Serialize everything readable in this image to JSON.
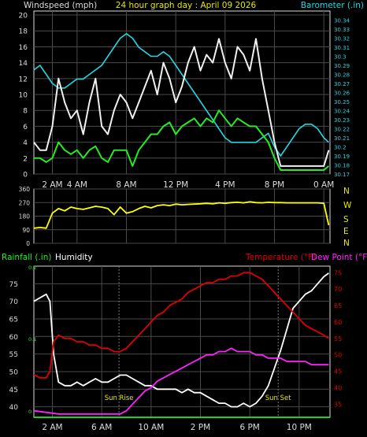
{
  "header": {
    "left_label": "Windspeed (mph)",
    "center_label": "24 hour graph day : April 09 2026",
    "right_label": "Barometer (.in)"
  },
  "colors": {
    "background": "#000000",
    "frame": "#dcdcdc",
    "grid": "#4a4a4a",
    "label": "#dcdcdc",
    "title": "#e8e800",
    "cyan": "#22d6e0",
    "green": "#22ee22",
    "gust": "#f0f0f0",
    "yellow": "#ffff00",
    "red": "#e00000",
    "magenta": "#ff22ff",
    "humidity": "#ffffff"
  },
  "chart_data": [
    {
      "id": "wind",
      "type": "line",
      "x_unit": "hours since midnight",
      "xlim": [
        0,
        24
      ],
      "x_tick_labels": [
        {
          "x": 1.5,
          "label": "2 AM"
        },
        {
          "x": 3.5,
          "label": "4 AM"
        },
        {
          "x": 7.5,
          "label": "8 AM"
        },
        {
          "x": 11.5,
          "label": "12 PM"
        },
        {
          "x": 15.5,
          "label": "4 PM"
        },
        {
          "x": 19.5,
          "label": "8 PM"
        },
        {
          "x": 23.5,
          "label": "0 AM"
        }
      ],
      "left_axis": {
        "label": "Windspeed (mph)",
        "ylim": [
          0,
          20.5
        ],
        "ticks": [
          0,
          2,
          4,
          6,
          8,
          10,
          12,
          14,
          16,
          18,
          20
        ]
      },
      "right_axis": {
        "label": "Barometer (.in)",
        "ylim": [
          30.17,
          30.35
        ],
        "ticks": [
          "30.17",
          "30.18",
          "30.19",
          "30.2",
          "30.21",
          "30.22",
          "30.23",
          "30.24",
          "30.25",
          "30.26",
          "30.27",
          "30.28",
          "30.29",
          "30.3",
          "30.31",
          "30.32",
          "30.33",
          "30.34"
        ]
      },
      "series": [
        {
          "role": "barometer",
          "color": "cyan",
          "x": [
            0,
            0.5,
            1,
            1.5,
            2,
            2.5,
            3,
            3.5,
            4,
            4.5,
            5,
            5.5,
            6,
            6.5,
            7,
            7.5,
            8,
            8.5,
            9,
            9.5,
            10,
            10.5,
            11,
            11.5,
            12,
            12.5,
            13,
            13.5,
            14,
            14.5,
            15,
            15.5,
            16,
            16.5,
            17,
            17.5,
            18,
            18.5,
            19,
            19.5,
            20,
            20.5,
            21,
            21.5,
            22,
            22.5,
            23,
            23.5,
            23.9
          ],
          "y": [
            30.285,
            30.29,
            30.28,
            30.27,
            30.265,
            30.265,
            30.27,
            30.275,
            30.275,
            30.28,
            30.285,
            30.29,
            30.3,
            30.31,
            30.32,
            30.325,
            30.32,
            30.31,
            30.305,
            30.3,
            30.3,
            30.305,
            30.3,
            30.29,
            30.28,
            30.27,
            30.26,
            30.25,
            30.24,
            30.23,
            30.22,
            30.21,
            30.205,
            30.205,
            30.205,
            30.205,
            30.205,
            30.21,
            30.215,
            30.2,
            30.19,
            30.2,
            30.21,
            30.22,
            30.225,
            30.225,
            30.22,
            30.21,
            30.205
          ]
        },
        {
          "role": "gust",
          "color": "gust",
          "x": [
            0,
            0.5,
            1,
            1.5,
            2,
            2.5,
            3,
            3.5,
            4,
            4.5,
            5,
            5.5,
            6,
            6.5,
            7,
            7.5,
            8,
            8.5,
            9,
            9.5,
            10,
            10.5,
            11,
            11.5,
            12,
            12.5,
            13,
            13.5,
            14,
            14.5,
            15,
            15.5,
            16,
            16.5,
            17,
            17.5,
            18,
            18.5,
            19,
            19.5,
            20,
            20.5,
            21,
            21.5,
            22,
            22.5,
            23,
            23.5,
            23.9
          ],
          "y": [
            4,
            3,
            3,
            6,
            12,
            9,
            7,
            8,
            5,
            9,
            12,
            6,
            5,
            8,
            10,
            9,
            7,
            9,
            11,
            13,
            10,
            14,
            12,
            9,
            11,
            14,
            16,
            13,
            15,
            14,
            17,
            14,
            12,
            16,
            15,
            13,
            17,
            12,
            8,
            4,
            1,
            1,
            1,
            1,
            1,
            1,
            1,
            1,
            3
          ]
        },
        {
          "role": "average",
          "color": "green",
          "x": [
            0,
            0.5,
            1,
            1.5,
            2,
            2.5,
            3,
            3.5,
            4,
            4.5,
            5,
            5.5,
            6,
            6.5,
            7,
            7.5,
            8,
            8.5,
            9,
            9.5,
            10,
            10.5,
            11,
            11.5,
            12,
            12.5,
            13,
            13.5,
            14,
            14.5,
            15,
            15.5,
            16,
            16.5,
            17,
            17.5,
            18,
            18.5,
            19,
            19.5,
            20,
            20.5,
            21,
            21.5,
            22,
            22.5,
            23,
            23.5,
            23.9
          ],
          "y": [
            2,
            2,
            1.5,
            2,
            4,
            3,
            2.5,
            3,
            2,
            3,
            3.5,
            2,
            1.5,
            3,
            3,
            3,
            1,
            3,
            4,
            5,
            5,
            6,
            6.5,
            5,
            6,
            6.5,
            7,
            6,
            7,
            6.5,
            8,
            7,
            6,
            7,
            6.5,
            6,
            6,
            5,
            4,
            2,
            0.5,
            0.5,
            0.5,
            0.5,
            0.5,
            0.5,
            0.5,
            0.5,
            1
          ]
        }
      ]
    },
    {
      "id": "wind-direction",
      "type": "line",
      "x_unit": "hours since midnight",
      "xlim": [
        0,
        24
      ],
      "left_axis": {
        "ylim": [
          0,
          360
        ],
        "ticks": [
          "0",
          "90",
          "180",
          "270",
          "360"
        ]
      },
      "right_axis": {
        "ticks": [
          "N",
          "W",
          "S",
          "E",
          "N"
        ]
      },
      "series": [
        {
          "role": "direction",
          "color": "yellow",
          "x": [
            0,
            0.5,
            1,
            1.5,
            2,
            2.5,
            3,
            3.5,
            4,
            4.5,
            5,
            5.5,
            6,
            6.5,
            7,
            7.5,
            8,
            8.5,
            9,
            9.5,
            10,
            10.5,
            11,
            11.5,
            12,
            12.5,
            13,
            13.5,
            14,
            14.5,
            15,
            15.5,
            16,
            16.5,
            17,
            17.5,
            18,
            18.5,
            19,
            19.5,
            20,
            20.5,
            21,
            21.5,
            22,
            22.5,
            23,
            23.5,
            23.9
          ],
          "y": [
            100,
            105,
            100,
            200,
            230,
            215,
            240,
            230,
            225,
            235,
            245,
            240,
            230,
            190,
            240,
            200,
            210,
            230,
            245,
            235,
            250,
            255,
            250,
            260,
            255,
            258,
            260,
            262,
            265,
            262,
            268,
            265,
            270,
            272,
            268,
            275,
            270,
            268,
            272,
            270,
            270,
            268,
            268,
            268,
            268,
            268,
            268,
            265,
            120
          ]
        }
      ]
    },
    {
      "id": "temperature-humidity",
      "type": "line",
      "x_unit": "hours since midnight",
      "xlim": [
        0,
        24
      ],
      "x_tick_labels": [
        {
          "x": 1.5,
          "label": "2 AM"
        },
        {
          "x": 5.5,
          "label": "6 AM"
        },
        {
          "x": 9.5,
          "label": "10 AM"
        },
        {
          "x": 13.5,
          "label": "2 PM"
        },
        {
          "x": 17.5,
          "label": "6 PM"
        },
        {
          "x": 21.5,
          "label": "10 PM"
        }
      ],
      "rainfall_axis": {
        "label": "Rainfall (.in)",
        "ticks": [
          "0",
          "0.1",
          "0.2"
        ]
      },
      "humidity_axis": {
        "label": "Humidity",
        "ylim": [
          37,
          80
        ],
        "ticks": [
          40,
          45,
          50,
          55,
          60,
          65,
          70,
          75
        ]
      },
      "temperature_axis": {
        "label": "Temperature (°F)",
        "label2": "Dew Point (°F)",
        "ylim": [
          31,
          77
        ],
        "ticks": [
          35,
          40,
          45,
          50,
          55,
          60,
          65,
          70,
          75
        ]
      },
      "annotations": [
        {
          "text": "Sun Rise",
          "x": 6.9
        },
        {
          "text": "Sun Set",
          "x": 19.8
        }
      ],
      "series": [
        {
          "name": "Humidity",
          "color": "humidity",
          "x": [
            0,
            0.5,
            1,
            1.3,
            1.6,
            2,
            2.5,
            3,
            3.5,
            4,
            4.5,
            5,
            5.5,
            6,
            6.5,
            7,
            7.5,
            8,
            8.5,
            9,
            9.5,
            10,
            10.5,
            11,
            11.5,
            12,
            12.5,
            13,
            13.5,
            14,
            14.5,
            15,
            15.5,
            16,
            16.5,
            17,
            17.5,
            18,
            18.5,
            19,
            19.5,
            20,
            20.5,
            21,
            21.5,
            22,
            22.5,
            23,
            23.5,
            23.9
          ],
          "y": [
            70,
            71,
            72,
            70,
            55,
            47,
            46,
            46,
            47,
            46,
            47,
            48,
            47,
            47,
            48,
            49,
            49,
            48,
            47,
            46,
            46,
            45,
            45,
            45,
            45,
            44,
            45,
            44,
            44,
            43,
            42,
            41,
            41,
            40,
            40,
            41,
            40,
            41,
            43,
            46,
            51,
            56,
            62,
            68,
            70,
            72,
            73,
            75,
            77,
            78
          ]
        },
        {
          "name": "Temperature (°F)",
          "color": "red",
          "x": [
            0,
            0.5,
            1,
            1.3,
            1.6,
            2,
            2.5,
            3,
            3.5,
            4,
            4.5,
            5,
            5.5,
            6,
            6.5,
            7,
            7.5,
            8,
            8.5,
            9,
            9.5,
            10,
            10.5,
            11,
            11.5,
            12,
            12.5,
            13,
            13.5,
            14,
            14.5,
            15,
            15.5,
            16,
            16.5,
            17,
            17.5,
            18,
            18.5,
            19,
            19.5,
            20,
            20.5,
            21,
            21.5,
            22,
            22.5,
            23,
            23.5,
            23.9
          ],
          "y": [
            44,
            43,
            43,
            45,
            54,
            56,
            55,
            55,
            54,
            54,
            53,
            53,
            52,
            52,
            51,
            51,
            52,
            54,
            56,
            58,
            60,
            62,
            63,
            65,
            66,
            67,
            69,
            70,
            71,
            72,
            72,
            73,
            73,
            74,
            74,
            75,
            75,
            74,
            73,
            71,
            69,
            67,
            65,
            63,
            61,
            59,
            58,
            57,
            56,
            55
          ]
        },
        {
          "name": "Dew Point (°F)",
          "color": "magenta",
          "x": [
            0,
            1,
            2,
            3,
            4,
            5,
            6,
            7,
            7.5,
            8,
            8.5,
            9,
            9.5,
            10,
            10.5,
            11,
            11.5,
            12,
            12.5,
            13,
            13.5,
            14,
            14.5,
            15,
            15.5,
            16,
            16.5,
            17,
            17.5,
            18,
            18.5,
            19,
            19.5,
            20,
            20.5,
            21,
            21.5,
            22,
            22.5,
            23,
            23.5,
            23.9
          ],
          "y": [
            33,
            32.5,
            32,
            32,
            32,
            32,
            32,
            32,
            33,
            35,
            37,
            39,
            40,
            42,
            43,
            44,
            45,
            46,
            47,
            48,
            49,
            50,
            50,
            51,
            51,
            52,
            51,
            51,
            51,
            50,
            50,
            49,
            49,
            49,
            48,
            48,
            48,
            48,
            47,
            47,
            47,
            47
          ]
        },
        {
          "name": "Rainfall (.in)",
          "color": "green",
          "x": [
            0,
            24
          ],
          "y": [
            0,
            0
          ]
        }
      ]
    }
  ]
}
